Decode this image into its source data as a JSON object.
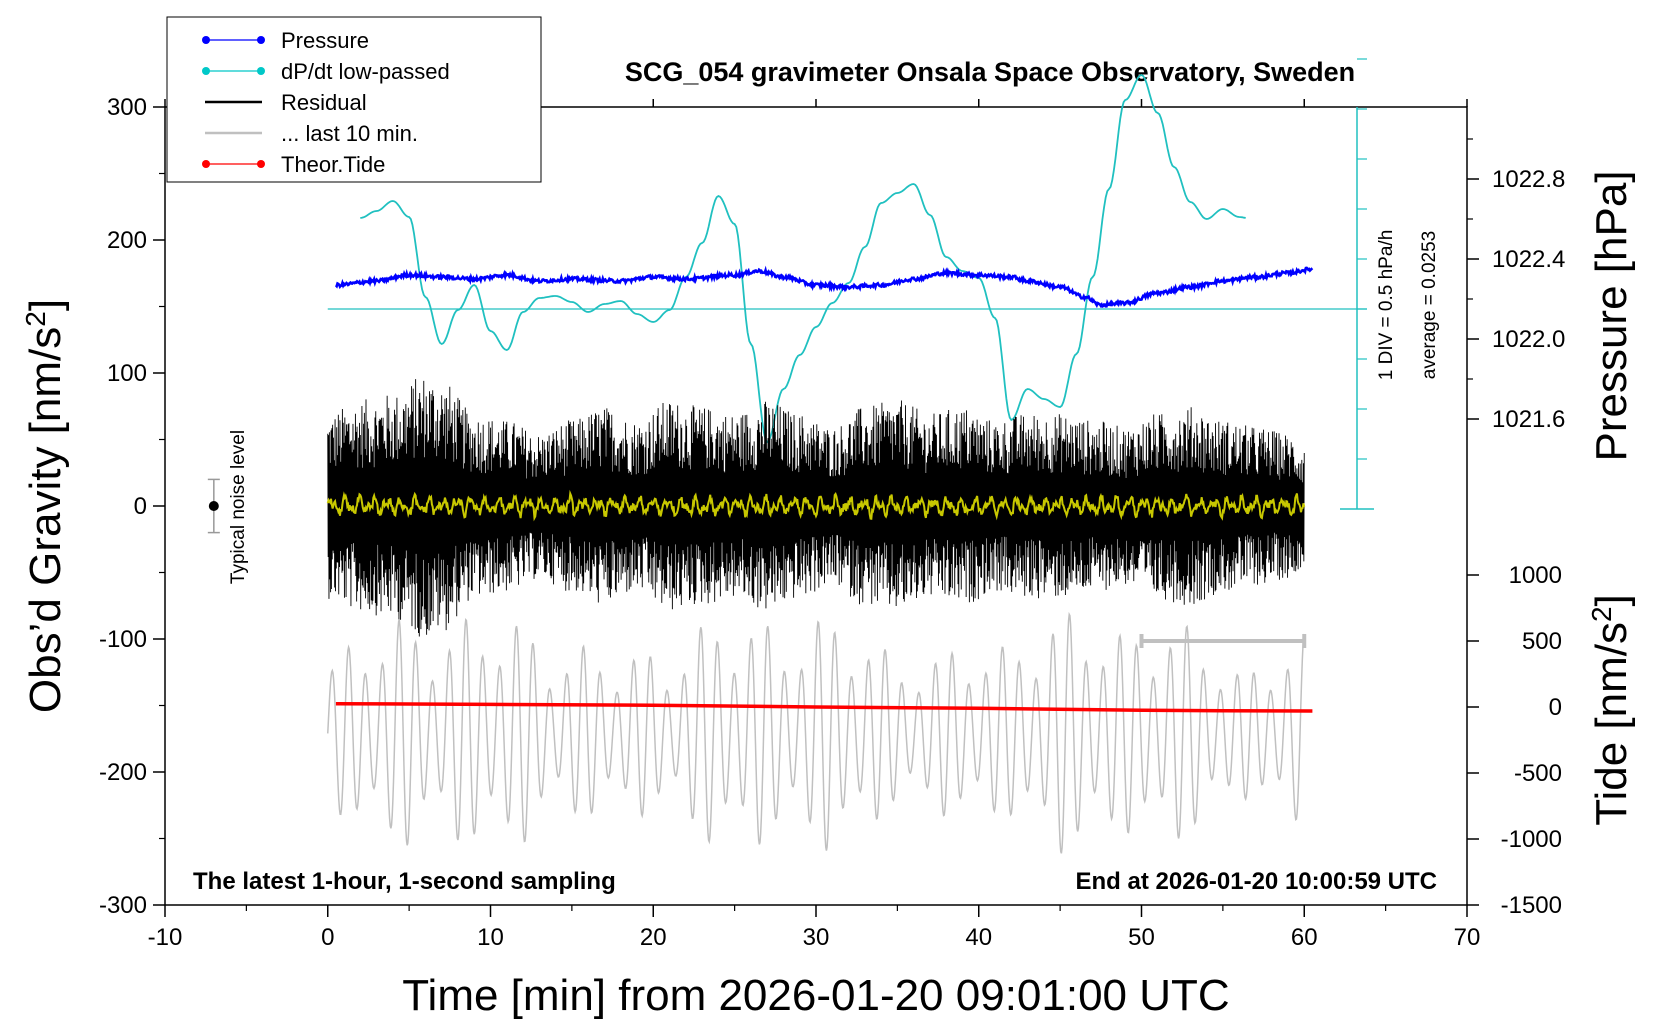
{
  "chart_data": {
    "type": "line",
    "title": "SCG_054 gravimeter Onsala Space Observatory, Sweden",
    "xlabel": "Time [min] from 2026-01-20 09:01:00 UTC",
    "ylabel_left_main": "Obs’d Gravity [nm/s",
    "ylabel_left_sup": "2",
    "ylabel_left_end": "]",
    "ylabel_right_pressure": "Pressure [hPa]",
    "ylabel_right_tide_main": "Tide [nm/s",
    "ylabel_right_tide_sup": "2",
    "ylabel_right_tide_end": "]",
    "xlim": [
      -10,
      70
    ],
    "ylim_left": [
      -300,
      300
    ],
    "x_ticks": [
      "-10",
      "0",
      "10",
      "20",
      "30",
      "40",
      "50",
      "60",
      "70"
    ],
    "y_ticks_left": [
      "-300",
      "-200",
      "-100",
      "0",
      "100",
      "200",
      "300"
    ],
    "pressure_ticks": [
      "1021.6",
      "1022.0",
      "1022.4",
      "1022.8"
    ],
    "tide_ticks": [
      "-1500",
      "-1000",
      "-500",
      "0",
      "500",
      "1000"
    ],
    "noise_label": "Typical noise level",
    "dpdt_div_label": "1 DIV = 0.5 hPa/h",
    "dpdt_avg_label": "average = 0.0253",
    "bottom_left_note": "The latest 1-hour, 1-second sampling",
    "bottom_right_note": "End at 2026-01-20 10:00:59 UTC",
    "legend": [
      {
        "label": "Pressure",
        "color": "#0000ff",
        "marker": true
      },
      {
        "label": "dP/dt low-passed",
        "color": "#00c8c8",
        "marker": true
      },
      {
        "label": "Residual",
        "color": "#000000",
        "marker": false
      },
      {
        "label": "... last 10 min.",
        "color": "#c0c0c0",
        "marker": false
      },
      {
        "label": "Theor.Tide",
        "color": "#ff0000",
        "marker": true
      }
    ],
    "colors": {
      "pressure": "#0000ff",
      "dpdt": "#20c0c0",
      "residual": "#000000",
      "residual_smooth": "#c8c800",
      "last10": "#c0c0c0",
      "tide": "#ff0000"
    },
    "series": [
      {
        "name": "Pressure",
        "axis": "pressure_hPa",
        "x": [
          0.5,
          3,
          5,
          7,
          9,
          11,
          13,
          15,
          18,
          20,
          22,
          25,
          26.5,
          28,
          30,
          32,
          34,
          36,
          38,
          40,
          42,
          43,
          45,
          46.5,
          47.5,
          49,
          51,
          53,
          55,
          57,
          59,
          60.5
        ],
        "values": [
          1022.27,
          1022.29,
          1022.32,
          1022.31,
          1022.3,
          1022.32,
          1022.29,
          1022.3,
          1022.29,
          1022.31,
          1022.3,
          1022.32,
          1022.34,
          1022.31,
          1022.27,
          1022.26,
          1022.27,
          1022.3,
          1022.33,
          1022.32,
          1022.31,
          1022.29,
          1022.26,
          1022.21,
          1022.17,
          1022.18,
          1022.23,
          1022.26,
          1022.29,
          1022.31,
          1022.33,
          1022.35
        ]
      },
      {
        "name": "dP/dt low-passed",
        "axis": "dpdt_div",
        "x": [
          2,
          3,
          4,
          5,
          6,
          7,
          8,
          9,
          10,
          11,
          12,
          13,
          14,
          15,
          16,
          17,
          18,
          19,
          20,
          21,
          22,
          23,
          24,
          25,
          26,
          27,
          28,
          29,
          30,
          31,
          32,
          33,
          34,
          35,
          36,
          37,
          38,
          39,
          40,
          41,
          42,
          43,
          44,
          45,
          46,
          47,
          48,
          49,
          50,
          51,
          52,
          53,
          54,
          55,
          56,
          56.5
        ],
        "values": [
          0.91,
          0.98,
          1.08,
          0.92,
          0.12,
          -0.35,
          -0.01,
          0.24,
          -0.22,
          -0.41,
          -0.03,
          0.11,
          0.13,
          0.07,
          -0.03,
          0.05,
          0.08,
          -0.05,
          -0.13,
          -0.01,
          0.32,
          0.66,
          1.13,
          0.85,
          -0.35,
          -1.33,
          -0.8,
          -0.46,
          -0.18,
          0.06,
          0.26,
          0.62,
          1.06,
          1.16,
          1.25,
          0.94,
          0.52,
          0.38,
          0.31,
          -0.09,
          -1.11,
          -0.8,
          -0.9,
          -0.98,
          -0.45,
          0.32,
          1.2,
          2.09,
          2.34,
          1.96,
          1.42,
          1.07,
          0.9,
          1.0,
          0.92,
          0.91
        ]
      },
      {
        "name": "Residual",
        "axis": "gravity",
        "envelope_x": [
          0,
          2,
          4,
          6,
          7,
          9,
          11,
          13,
          15,
          17,
          19,
          21,
          23,
          25,
          27,
          29,
          31,
          33,
          35,
          37,
          39,
          41,
          43,
          45,
          47,
          49,
          51,
          53,
          55,
          57,
          59,
          60
        ],
        "envelope_amp": [
          70,
          80,
          85,
          100,
          95,
          70,
          65,
          55,
          65,
          75,
          65,
          80,
          75,
          70,
          80,
          70,
          60,
          75,
          80,
          70,
          75,
          65,
          70,
          70,
          65,
          60,
          70,
          75,
          65,
          60,
          55,
          45
        ]
      },
      {
        "name": "Theor.Tide",
        "axis": "tide",
        "x": [
          0.5,
          10,
          20,
          30,
          40,
          50,
          55,
          60.5
        ],
        "values": [
          25,
          20,
          14,
          0,
          -10,
          -25,
          -28,
          -30
        ]
      },
      {
        "name": "... last 10 min.",
        "axis": "tide",
        "bracket_x": [
          50,
          60
        ],
        "bracket_value": 500
      }
    ],
    "noise_bar": {
      "x": -7,
      "y": 0,
      "half_range": 20
    }
  }
}
